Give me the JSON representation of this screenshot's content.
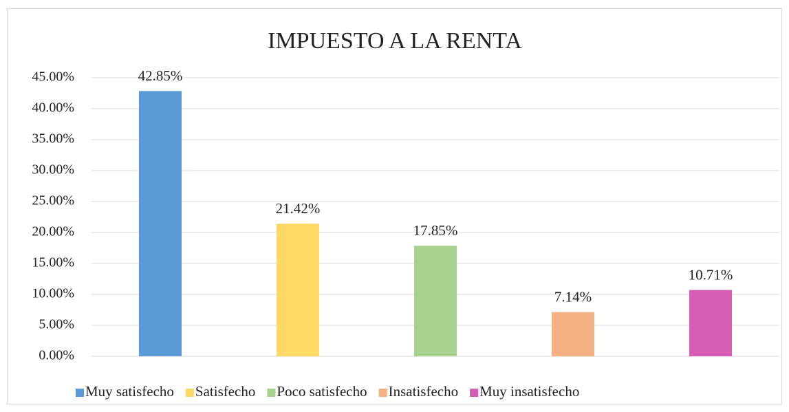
{
  "chart_data": {
    "type": "bar",
    "title": "IMPUESTO A LA RENTA",
    "categories": [
      "Muy satisfecho",
      "Satisfecho",
      "Poco satisfecho",
      "Insatisfecho",
      "Muy insatisfecho"
    ],
    "values": [
      42.85,
      21.42,
      17.85,
      7.14,
      10.71
    ],
    "value_labels": [
      "42.85%",
      "21.42%",
      "17.85%",
      "7.14%",
      "10.71%"
    ],
    "colors": [
      "#5b9bd5",
      "#ffd966",
      "#a9d18e",
      "#f4b183",
      "#d55db3"
    ],
    "ylim": [
      0,
      45
    ],
    "yticks": [
      {
        "value": 0,
        "label": "0.00%"
      },
      {
        "value": 5,
        "label": "5.00%"
      },
      {
        "value": 10,
        "label": "10.00%"
      },
      {
        "value": 15,
        "label": "15.00%"
      },
      {
        "value": 20,
        "label": "20.00%"
      },
      {
        "value": 25,
        "label": "25.00%"
      },
      {
        "value": 30,
        "label": "30.00%"
      },
      {
        "value": 35,
        "label": "35.00%"
      },
      {
        "value": 40,
        "label": "40.00%"
      },
      {
        "value": 45,
        "label": "45.00%"
      }
    ],
    "grid": true,
    "legend": "bottom"
  }
}
